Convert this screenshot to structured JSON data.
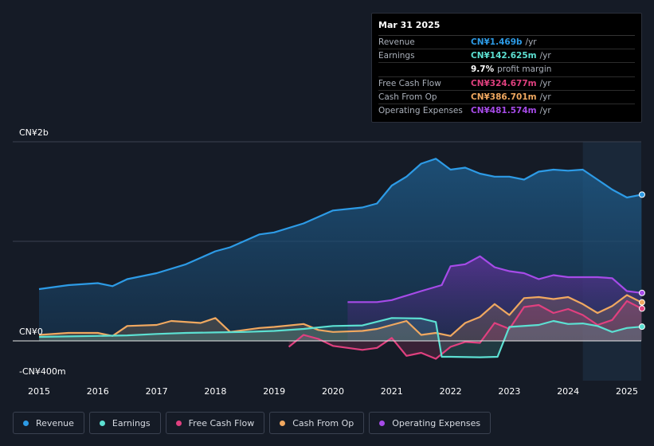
{
  "tooltip": {
    "date": "Mar 31 2025",
    "rows": [
      {
        "label": "Revenue",
        "value": "CN¥1.469b",
        "unit": "/yr",
        "color": "#2d9be6"
      },
      {
        "label": "Earnings",
        "value": "CN¥142.625m",
        "unit": "/yr",
        "color": "#5ce0d2"
      },
      {
        "label": "",
        "value": "9.7%",
        "unit": "profit margin",
        "color": "#ffffff"
      },
      {
        "label": "Free Cash Flow",
        "value": "CN¥324.677m",
        "unit": "/yr",
        "color": "#e0407f"
      },
      {
        "label": "Cash From Op",
        "value": "CN¥386.701m",
        "unit": "/yr",
        "color": "#f0a860"
      },
      {
        "label": "Operating Expenses",
        "value": "CN¥481.574m",
        "unit": "/yr",
        "color": "#a64be8"
      }
    ]
  },
  "legend": [
    {
      "label": "Revenue",
      "color": "#2d9be6"
    },
    {
      "label": "Earnings",
      "color": "#5ce0d2"
    },
    {
      "label": "Free Cash Flow",
      "color": "#e0407f"
    },
    {
      "label": "Cash From Op",
      "color": "#f0a860"
    },
    {
      "label": "Operating Expenses",
      "color": "#a64be8"
    }
  ],
  "chart_data": {
    "type": "area",
    "title": "",
    "ylim": [
      -400,
      2000
    ],
    "xlim": [
      2014.9,
      2025.25
    ],
    "y_tick_labels": [
      {
        "value": 2000,
        "label": "CN¥2b"
      },
      {
        "value": 0,
        "label": "CN¥0"
      },
      {
        "value": -400,
        "label": "-CN¥400m"
      }
    ],
    "x_ticks": [
      2015,
      2016,
      2017,
      2018,
      2019,
      2020,
      2021,
      2022,
      2023,
      2024,
      2025
    ],
    "x_tick_labels": [
      "2015",
      "2016",
      "2017",
      "2018",
      "2019",
      "2020",
      "2021",
      "2022",
      "2023",
      "2024",
      "2025"
    ],
    "forecast_start": 2024.25,
    "series": [
      {
        "name": "Revenue",
        "color": "#2d9be6",
        "points": [
          [
            2015,
            520
          ],
          [
            2015.5,
            560
          ],
          [
            2016,
            580
          ],
          [
            2016.25,
            550
          ],
          [
            2016.5,
            620
          ],
          [
            2017,
            680
          ],
          [
            2017.5,
            770
          ],
          [
            2018,
            900
          ],
          [
            2018.25,
            940
          ],
          [
            2018.75,
            1070
          ],
          [
            2019,
            1090
          ],
          [
            2019.5,
            1180
          ],
          [
            2020,
            1310
          ],
          [
            2020.5,
            1340
          ],
          [
            2020.75,
            1380
          ],
          [
            2021,
            1560
          ],
          [
            2021.25,
            1650
          ],
          [
            2021.5,
            1780
          ],
          [
            2021.75,
            1830
          ],
          [
            2022,
            1720
          ],
          [
            2022.25,
            1740
          ],
          [
            2022.5,
            1680
          ],
          [
            2022.75,
            1650
          ],
          [
            2023,
            1650
          ],
          [
            2023.25,
            1620
          ],
          [
            2023.5,
            1700
          ],
          [
            2023.75,
            1720
          ],
          [
            2024,
            1710
          ],
          [
            2024.25,
            1720
          ],
          [
            2024.5,
            1620
          ],
          [
            2024.75,
            1520
          ],
          [
            2025,
            1440
          ],
          [
            2025.25,
            1469
          ]
        ]
      },
      {
        "name": "Operating Expenses",
        "color": "#a64be8",
        "points": [
          [
            2020.25,
            390
          ],
          [
            2020.75,
            390
          ],
          [
            2021,
            410
          ],
          [
            2021.5,
            500
          ],
          [
            2021.85,
            560
          ],
          [
            2022,
            750
          ],
          [
            2022.25,
            770
          ],
          [
            2022.5,
            850
          ],
          [
            2022.75,
            740
          ],
          [
            2023,
            700
          ],
          [
            2023.25,
            680
          ],
          [
            2023.5,
            620
          ],
          [
            2023.75,
            660
          ],
          [
            2024,
            640
          ],
          [
            2024.25,
            640
          ],
          [
            2024.5,
            640
          ],
          [
            2024.75,
            630
          ],
          [
            2025,
            500
          ],
          [
            2025.25,
            481.6
          ]
        ]
      },
      {
        "name": "Cash From Op",
        "color": "#f0a860",
        "points": [
          [
            2015,
            60
          ],
          [
            2015.5,
            80
          ],
          [
            2016,
            80
          ],
          [
            2016.25,
            50
          ],
          [
            2016.5,
            150
          ],
          [
            2017,
            160
          ],
          [
            2017.25,
            200
          ],
          [
            2017.75,
            180
          ],
          [
            2018,
            230
          ],
          [
            2018.25,
            90
          ],
          [
            2018.5,
            110
          ],
          [
            2018.75,
            130
          ],
          [
            2019,
            140
          ],
          [
            2019.5,
            170
          ],
          [
            2019.75,
            110
          ],
          [
            2020,
            90
          ],
          [
            2020.5,
            100
          ],
          [
            2020.75,
            120
          ],
          [
            2021,
            160
          ],
          [
            2021.25,
            200
          ],
          [
            2021.5,
            60
          ],
          [
            2021.75,
            80
          ],
          [
            2022,
            50
          ],
          [
            2022.25,
            180
          ],
          [
            2022.5,
            240
          ],
          [
            2022.75,
            370
          ],
          [
            2023,
            260
          ],
          [
            2023.25,
            430
          ],
          [
            2023.5,
            440
          ],
          [
            2023.75,
            420
          ],
          [
            2024,
            440
          ],
          [
            2024.25,
            370
          ],
          [
            2024.5,
            280
          ],
          [
            2024.75,
            350
          ],
          [
            2025,
            460
          ],
          [
            2025.25,
            386.7
          ]
        ]
      },
      {
        "name": "Free Cash Flow",
        "color": "#e0407f",
        "points": [
          [
            2019.25,
            -60
          ],
          [
            2019.5,
            60
          ],
          [
            2019.75,
            20
          ],
          [
            2020,
            -50
          ],
          [
            2020.5,
            -90
          ],
          [
            2020.75,
            -70
          ],
          [
            2021,
            30
          ],
          [
            2021.25,
            -150
          ],
          [
            2021.5,
            -120
          ],
          [
            2021.75,
            -180
          ],
          [
            2022,
            -60
          ],
          [
            2022.25,
            -10
          ],
          [
            2022.5,
            -20
          ],
          [
            2022.75,
            180
          ],
          [
            2023,
            120
          ],
          [
            2023.25,
            340
          ],
          [
            2023.5,
            360
          ],
          [
            2023.75,
            280
          ],
          [
            2024,
            320
          ],
          [
            2024.25,
            260
          ],
          [
            2024.5,
            160
          ],
          [
            2024.75,
            210
          ],
          [
            2025,
            400
          ],
          [
            2025.25,
            324.7
          ]
        ]
      },
      {
        "name": "Earnings",
        "color": "#5ce0d2",
        "points": [
          [
            2015,
            40
          ],
          [
            2015.5,
            45
          ],
          [
            2016,
            50
          ],
          [
            2016.5,
            55
          ],
          [
            2017,
            70
          ],
          [
            2017.5,
            80
          ],
          [
            2018,
            85
          ],
          [
            2018.5,
            90
          ],
          [
            2019,
            100
          ],
          [
            2019.5,
            120
          ],
          [
            2020,
            150
          ],
          [
            2020.5,
            155
          ],
          [
            2021,
            230
          ],
          [
            2021.5,
            225
          ],
          [
            2021.75,
            190
          ],
          [
            2021.85,
            -160
          ],
          [
            2022,
            -160
          ],
          [
            2022.5,
            -165
          ],
          [
            2022.8,
            -160
          ],
          [
            2023,
            140
          ],
          [
            2023.5,
            160
          ],
          [
            2023.75,
            200
          ],
          [
            2024,
            170
          ],
          [
            2024.25,
            175
          ],
          [
            2024.5,
            150
          ],
          [
            2024.75,
            90
          ],
          [
            2025,
            130
          ],
          [
            2025.25,
            142.6
          ]
        ]
      }
    ]
  }
}
